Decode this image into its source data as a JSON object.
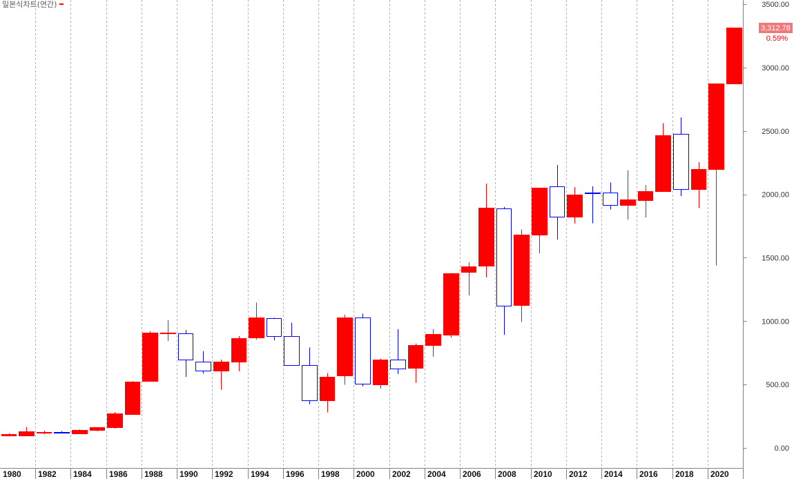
{
  "chart_data": {
    "type": "candlestick",
    "title": "일본식차트(연간)",
    "x": [
      1980,
      1981,
      1982,
      1983,
      1984,
      1985,
      1986,
      1987,
      1988,
      1989,
      1990,
      1991,
      1992,
      1993,
      1994,
      1995,
      1996,
      1997,
      1998,
      1999,
      2000,
      2001,
      2002,
      2003,
      2004,
      2005,
      2006,
      2007,
      2008,
      2009,
      2010,
      2011,
      2012,
      2013,
      2014,
      2015,
      2016,
      2017,
      2018,
      2019,
      2020,
      2021
    ],
    "open": [
      100,
      97,
      122,
      127,
      116,
      140,
      161,
      264,
      527,
      905,
      905,
      680,
      611,
      680,
      870,
      1025,
      883,
      651,
      376,
      570,
      1028,
      503,
      697,
      633,
      812,
      893,
      1389,
      1438,
      1891,
      1125,
      1682,
      2063,
      1826,
      2013,
      2013,
      1915,
      1955,
      2026,
      2479,
      2044,
      2201,
      2874
    ],
    "high": [
      117,
      165,
      135,
      134,
      146,
      164,
      282,
      525,
      922,
      1007,
      930,
      763,
      697,
      882,
      1146,
      1027,
      987,
      792,
      590,
      1052,
      1060,
      705,
      937,
      823,
      936,
      1379,
      1465,
      2085,
      1901,
      1723,
      2052,
      2231,
      2057,
      2063,
      2093,
      2189,
      2073,
      2561,
      2607,
      2253,
      2873,
      3316
    ],
    "low": [
      95,
      94,
      108,
      115,
      112,
      131,
      153,
      264,
      527,
      844,
      560,
      586,
      459,
      605,
      855,
      848,
      651,
      345,
      280,
      498,
      485,
      468,
      584,
      513,
      719,
      870,
      1203,
      1345,
      892,
      993,
      1533,
      1644,
      1770,
      1772,
      1881,
      1801,
      1818,
      2026,
      1986,
      1892,
      1439,
      2869
    ],
    "close": [
      107,
      131,
      127,
      121,
      142,
      163,
      273,
      525,
      907,
      909,
      696,
      611,
      678,
      866,
      1027,
      883,
      651,
      376,
      562,
      1028,
      505,
      694,
      628,
      811,
      896,
      1379,
      1434,
      1897,
      1124,
      1683,
      2051,
      1826,
      1997,
      2011,
      1916,
      1961,
      2026,
      2467,
      2041,
      2198,
      2873,
      3312.78
    ],
    "x_ticks": [
      1980,
      1982,
      1984,
      1986,
      1988,
      1990,
      1992,
      1994,
      1996,
      1998,
      2000,
      2002,
      2004,
      2006,
      2008,
      2010,
      2012,
      2014,
      2016,
      2018,
      2020
    ],
    "x_tick_labels": [
      "1980",
      "1982",
      "1984",
      "1986",
      "1988",
      "1990",
      "1992",
      "1994",
      "1996",
      "1998",
      "2000",
      "2002",
      "2004",
      "2006",
      "2008",
      "2010",
      "2012",
      "2014",
      "2016",
      "2018",
      "2020"
    ],
    "y_ticks": [
      0,
      500,
      1000,
      1500,
      2000,
      2500,
      3000,
      3500
    ],
    "y_tick_labels": [
      "0.00",
      "500.00",
      "1000.00",
      "1500.00",
      "2000.00",
      "2500.00",
      "3000.00",
      "3500.00"
    ],
    "xlim": [
      1979.5,
      2021.5
    ],
    "ylim": [
      -158,
      3533
    ],
    "y_axis_side": "right",
    "grid": {
      "vertical": true,
      "horizontal": false
    },
    "colors": {
      "up": "#ff0000",
      "down": "#0000ff",
      "down_fill": "#ffffff",
      "grid": "#b0b0b0",
      "axis": "#808080",
      "legend_marker": "#ff0000"
    },
    "last_price": {
      "value": 3312.78,
      "label": "3,312.78",
      "change": "0.59%",
      "box_color": "#f07878",
      "change_color": "#ff0000"
    }
  }
}
